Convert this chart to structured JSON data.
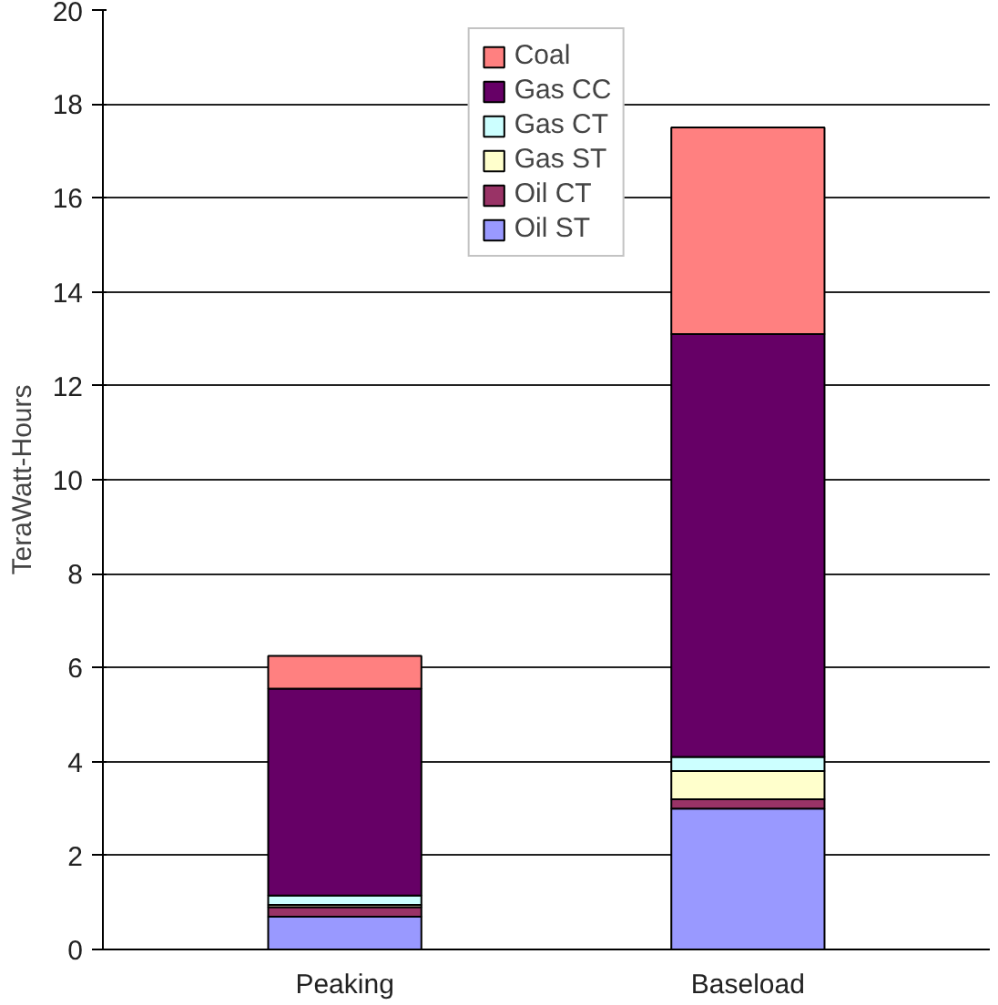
{
  "chart_data": {
    "type": "bar",
    "stacked": true,
    "ylabel": "TeraWatt-Hours",
    "categories": [
      "Peaking",
      "Baseload"
    ],
    "series": [
      {
        "name": "Oil ST",
        "color": "#9999ff",
        "values": [
          0.7,
          3.0
        ]
      },
      {
        "name": "Oil CT",
        "color": "#993366",
        "values": [
          0.2,
          0.2
        ]
      },
      {
        "name": "Gas ST",
        "color": "#ffffcc",
        "values": [
          0.05,
          0.6
        ]
      },
      {
        "name": "Gas CT",
        "color": "#ccffff",
        "values": [
          0.2,
          0.3
        ]
      },
      {
        "name": "Gas CC",
        "color": "#660066",
        "values": [
          4.4,
          9.0
        ]
      },
      {
        "name": "Coal",
        "color": "#ff8080",
        "values": [
          0.7,
          4.4
        ]
      }
    ],
    "ylim": [
      0,
      20
    ],
    "yticks": [
      0,
      2,
      4,
      6,
      8,
      10,
      12,
      14,
      16,
      18,
      20
    ],
    "grid": "y",
    "legend": "top"
  }
}
